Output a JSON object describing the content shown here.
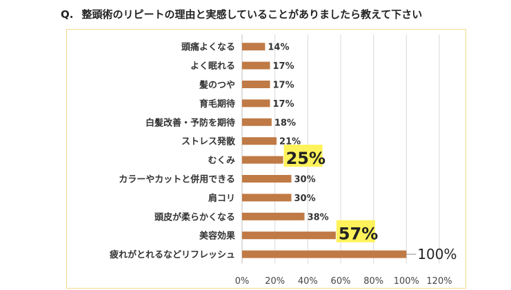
{
  "question": {
    "prefix": "Q.",
    "text": "整頭術のリピートの理由と実感していることがありましたら教えて下さい"
  },
  "colors": {
    "bar": "#c07a45",
    "highlight": "#fff25a",
    "frame": "#f3d98a",
    "grid": "#d9d9d9"
  },
  "chart_data": {
    "type": "bar",
    "orientation": "horizontal",
    "title": "",
    "xlabel": "",
    "ylabel": "",
    "categories": [
      "頭痛よくなる",
      "よく眠れる",
      "髪のつや",
      "育毛期待",
      "白髪改善・予防を期待",
      "ストレス発散",
      "むくみ",
      "カラーやカットと併用できる",
      "肩コリ",
      "頭皮が柔らかくなる",
      "美容効果",
      "疲れがとれるなどリフレッシュ"
    ],
    "values": [
      14,
      17,
      17,
      17,
      18,
      21,
      25,
      30,
      30,
      38,
      57,
      100
    ],
    "data_labels": [
      "14%",
      "17%",
      "17%",
      "17%",
      "18%",
      "21%",
      "25%",
      "30%",
      "30%",
      "38%",
      "57%",
      "100%"
    ],
    "highlighted": [
      "むくみ",
      "美容効果"
    ],
    "xlim": [
      0,
      120
    ],
    "x_ticks": [
      "0%",
      "20%",
      "40%",
      "60%",
      "80%",
      "100%",
      "120%"
    ],
    "grid": true,
    "legend": "none"
  }
}
